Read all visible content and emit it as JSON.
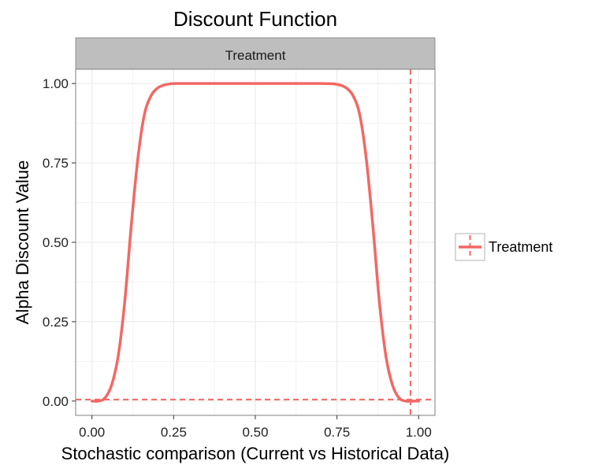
{
  "chart_data": {
    "type": "line",
    "title": "Discount Function",
    "facet_label": "Treatment",
    "xlabel": "Stochastic comparison (Current vs Historical Data)",
    "ylabel": "Alpha Discount Value",
    "xlim": [
      -0.05,
      1.05
    ],
    "ylim": [
      -0.045,
      1.045
    ],
    "x_ticks": [
      0.0,
      0.25,
      0.5,
      0.75,
      1.0
    ],
    "x_tick_labels": [
      "0.00",
      "0.25",
      "0.50",
      "0.75",
      "1.00"
    ],
    "y_ticks": [
      0.0,
      0.25,
      0.5,
      0.75,
      1.0
    ],
    "y_tick_labels": [
      "0.00",
      "0.25",
      "0.50",
      "0.75",
      "1.00"
    ],
    "grid": true,
    "legend": {
      "position": "right",
      "entries": [
        "Treatment"
      ]
    },
    "colors": {
      "series": "#F26864",
      "strip_bg": "#BEBEBE",
      "grid": "#EBEBEB",
      "panel_border": "#7F7F7F"
    },
    "series": [
      {
        "name": "Treatment",
        "x": [
          0.0,
          0.02,
          0.04,
          0.06,
          0.08,
          0.1,
          0.12,
          0.14,
          0.16,
          0.18,
          0.2,
          0.22,
          0.24,
          0.26,
          0.3,
          0.35,
          0.4,
          0.5,
          0.6,
          0.65,
          0.7,
          0.74,
          0.76,
          0.78,
          0.8,
          0.82,
          0.84,
          0.86,
          0.88,
          0.9,
          0.92,
          0.94,
          0.96,
          0.98,
          1.0
        ],
        "y": [
          0.0,
          0.0,
          0.01,
          0.05,
          0.14,
          0.31,
          0.55,
          0.76,
          0.9,
          0.96,
          0.985,
          0.995,
          0.999,
          1.0,
          1.0,
          1.0,
          1.0,
          1.0,
          1.0,
          1.0,
          1.0,
          0.999,
          0.995,
          0.985,
          0.96,
          0.9,
          0.76,
          0.55,
          0.31,
          0.14,
          0.05,
          0.01,
          0.0,
          0.0,
          0.0
        ]
      }
    ],
    "reference_lines": [
      {
        "orientation": "horizontal",
        "value": 0.005,
        "style": "dashed"
      },
      {
        "orientation": "vertical",
        "value": 0.975,
        "style": "dashed"
      }
    ]
  }
}
